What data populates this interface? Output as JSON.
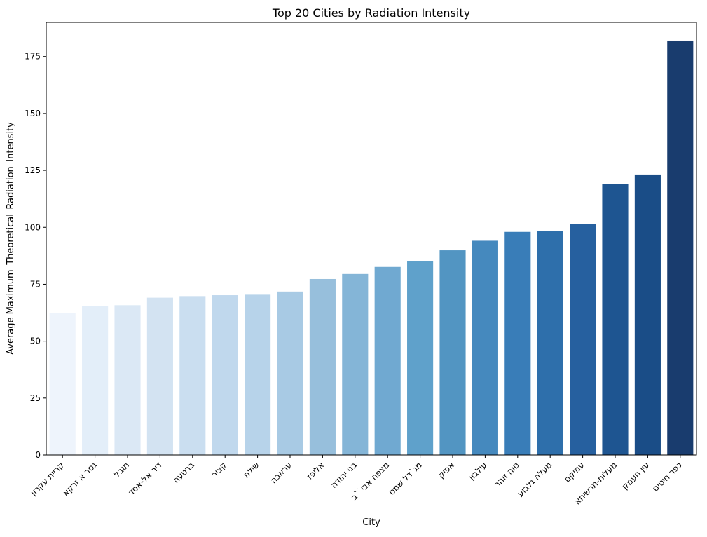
{
  "chart_data": {
    "type": "bar",
    "title": "Top 20 Cities by Radiation Intensity",
    "xlabel": "City",
    "ylabel": "Average Maximum_Theoretical_Radiation_Intensity",
    "ylim": [
      0,
      190
    ],
    "yticks": [
      0,
      25,
      50,
      75,
      100,
      125,
      150,
      175
    ],
    "grid": false,
    "categories": [
      "קריית עקרון",
      "גסר א זרקא",
      "תובל",
      "דיר אל-אסד",
      "ברטעה",
      "קציר",
      "שילת",
      "עראבה",
      "אליפז",
      "בני יהודה",
      "מצפה אבי``ב",
      "מג`דל שמס",
      "אפיק",
      "עילבון",
      "נווה זוהר",
      "מעלה גלבוע",
      "עמיקם",
      "מעלות-תרשיחא",
      "עין העמק",
      "כפר חיטים"
    ],
    "values": [
      62.3,
      65.4,
      65.8,
      69.1,
      69.8,
      70.2,
      70.4,
      71.8,
      77.3,
      79.5,
      82.6,
      85.3,
      89.9,
      94.1,
      98.0,
      98.4,
      101.5,
      119.0,
      123.2,
      182.0
    ],
    "colors": [
      "#eef4fc",
      "#e3eef9",
      "#dbe8f5",
      "#d3e3f2",
      "#cadef0",
      "#c0d8ed",
      "#b7d3ea",
      "#a8cae4",
      "#97bfdc",
      "#84b5d7",
      "#70a9d1",
      "#5fa1cb",
      "#5295c2",
      "#4589be",
      "#397db8",
      "#2e6fab",
      "#26609f",
      "#1e5591",
      "#1a4d87",
      "#193c6e"
    ]
  }
}
